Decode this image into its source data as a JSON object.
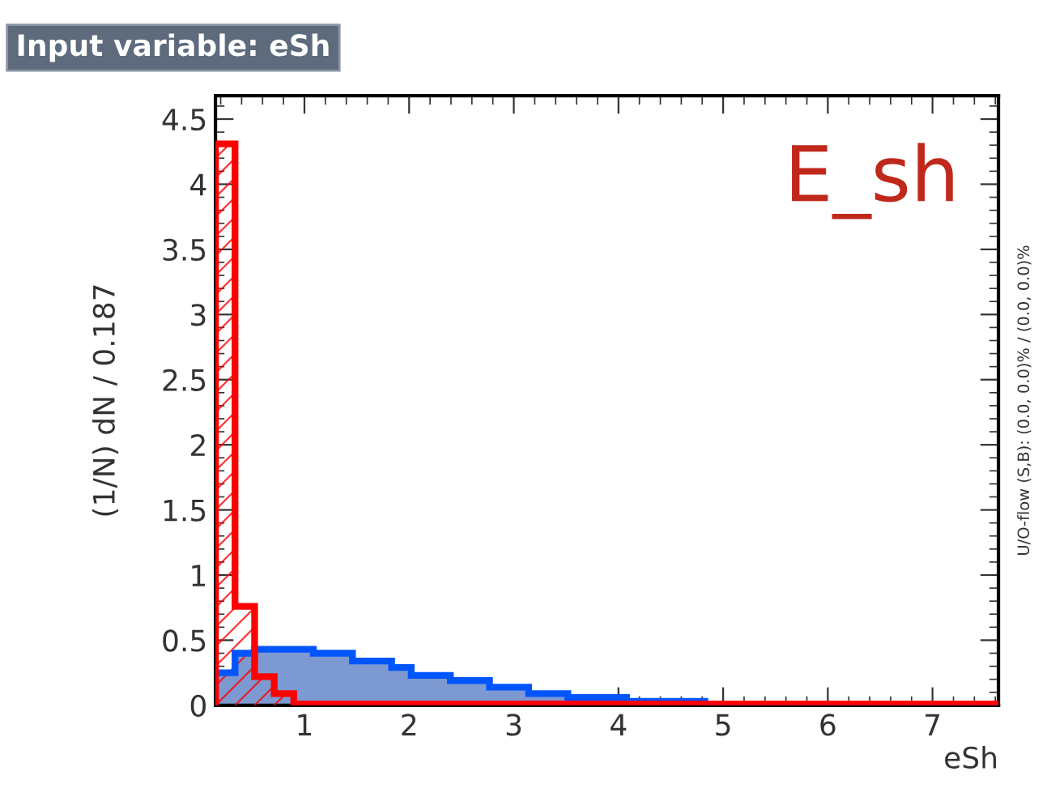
{
  "chart_data": {
    "type": "histogram",
    "title": "Input variable: eSh",
    "xlabel": "eSh",
    "ylabel": "(1/N) dN / 0.187",
    "bins": [
      0.15,
      0.337,
      0.524,
      0.711,
      0.898,
      1.085,
      1.272,
      1.459,
      1.646,
      1.833,
      2.02,
      2.207,
      2.394,
      2.581,
      2.768,
      2.955,
      3.142,
      3.329,
      3.516,
      3.703,
      3.89,
      4.077,
      4.264,
      4.451,
      4.638,
      4.825,
      5.012,
      5.199,
      5.386,
      5.573,
      5.76,
      5.947,
      6.134,
      6.321,
      6.508,
      6.695,
      6.882,
      7.069,
      7.256,
      7.443,
      7.63
    ],
    "series": [
      {
        "color": "#7d99d1",
        "values": [
          0.25,
          0.4,
          0.43,
          0.43,
          0.43,
          0.4,
          0.4,
          0.34,
          0.34,
          0.29,
          0.23,
          0.23,
          0.19,
          0.19,
          0.14,
          0.14,
          0.09,
          0.09,
          0.06,
          0.06,
          0.06,
          0.03,
          0.03,
          0.03,
          0.03,
          0,
          0,
          0,
          0,
          0,
          0,
          0,
          0,
          0,
          0,
          0,
          0,
          0,
          0,
          0
        ]
      },
      {
        "color": "#ff0000",
        "values": [
          4.31,
          0.76,
          0.22,
          0.09,
          0.01,
          0.01,
          0.01,
          0.01,
          0.01,
          0.01,
          0.01,
          0.01,
          0.01,
          0.01,
          0.01,
          0.01,
          0.01,
          0.01,
          0.01,
          0.01,
          0.01,
          0.01,
          0.01,
          0.01,
          0.01,
          0.01,
          0.01,
          0.01,
          0.01,
          0.01,
          0.01,
          0.01,
          0.01,
          0.01,
          0.01,
          0.01,
          0.01,
          0.01,
          0.01,
          0.01
        ]
      }
    ],
    "xlim": [
      0.15,
      7.63
    ],
    "ylim": [
      0,
      4.68
    ],
    "xticks": [
      1,
      2,
      3,
      4,
      5,
      6,
      7
    ],
    "yticks": [
      0,
      0.5,
      1,
      1.5,
      2,
      2.5,
      3,
      3.5,
      4,
      4.5
    ],
    "annotations": [
      "E_sh",
      "U/O-flow (S,B): (0.0, 0.0)% / (0.0, 0.0)%"
    ],
    "grid": false,
    "legend": false
  }
}
